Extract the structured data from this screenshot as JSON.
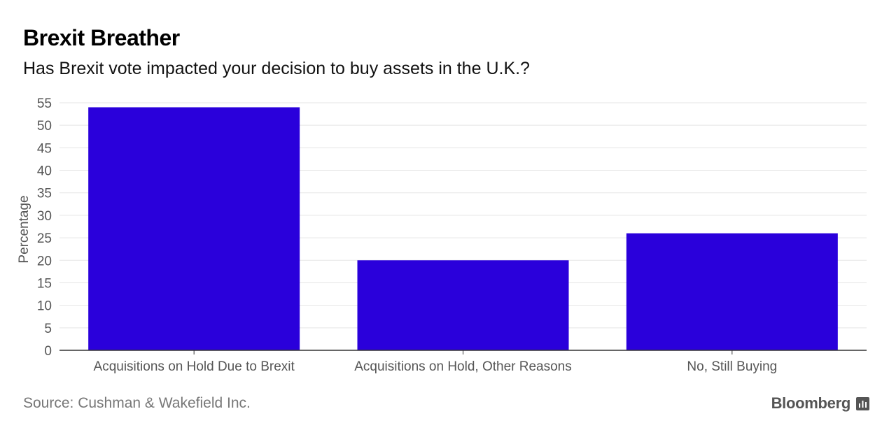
{
  "header": {
    "title": "Brexit Breather",
    "subtitle": "Has Brexit vote impacted your decision to buy assets in the U.K.?"
  },
  "footer": {
    "source": "Source: Cushman & Wakefield Inc.",
    "brand": "Bloomberg",
    "brand_icon": "bloomberg-chart-icon"
  },
  "colors": {
    "bar": "#2a00db",
    "grid": "#e5e5e5",
    "axis": "#333333",
    "tick_text": "#555555"
  },
  "chart_data": {
    "type": "bar",
    "title": "Brexit Breather",
    "subtitle": "Has Brexit vote impacted your decision to buy assets in the U.K.?",
    "categories": [
      "Acquisitions on Hold Due to Brexit",
      "Acquisitions on Hold, Other Reasons",
      "No, Still Buying"
    ],
    "values": [
      54,
      20,
      26
    ],
    "xlabel": "",
    "ylabel": "Percentage",
    "ylim": [
      0,
      55
    ],
    "yticks": [
      0,
      5,
      10,
      15,
      20,
      25,
      30,
      35,
      40,
      45,
      50,
      55
    ],
    "grid": true,
    "legend": "none"
  }
}
